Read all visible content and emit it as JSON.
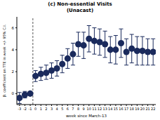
{
  "chart_data": {
    "type": "scatter",
    "title": "(c) Non-essential Visits",
    "subtitle": "(Unacast)",
    "x_label": "week since March-13",
    "y_label": "β: coefficient on TTE in week +/- 95% C.I.",
    "x": [
      -3,
      -2,
      -1,
      0,
      1,
      2,
      3,
      4,
      5,
      6,
      7,
      8,
      9,
      10,
      11,
      12,
      13,
      14,
      15,
      16,
      17,
      18,
      19,
      20,
      21,
      22
    ],
    "values": [
      -0.4,
      -0.1,
      0,
      1.6,
      1.8,
      1.9,
      2.1,
      2.3,
      2.7,
      3.2,
      3.6,
      4.5,
      4.4,
      5.0,
      4.8,
      4.7,
      4.5,
      4.0,
      4.0,
      4.6,
      3.8,
      4.1,
      3.9,
      3.9,
      3.8,
      3.8
    ],
    "ci_low": [
      -0.9,
      -0.4,
      0,
      1.1,
      1.2,
      1.3,
      1.4,
      1.6,
      1.9,
      2.3,
      2.6,
      3.4,
      3.2,
      3.8,
      3.6,
      3.5,
      3.3,
      2.8,
      2.7,
      3.3,
      2.6,
      2.8,
      2.6,
      2.6,
      2.6,
      2.6
    ],
    "ci_high": [
      0.1,
      0.2,
      0,
      2.1,
      2.4,
      2.6,
      2.8,
      3.0,
      3.5,
      4.1,
      4.6,
      5.6,
      5.6,
      6.2,
      6.0,
      5.9,
      5.7,
      5.2,
      5.3,
      5.9,
      5.0,
      5.4,
      5.2,
      5.2,
      5.0,
      5.0
    ],
    "vline": -0.5,
    "xlim": [
      -3.5,
      22.5
    ],
    "xticks": [
      -3,
      -2,
      -1,
      0,
      1,
      2,
      3,
      4,
      5,
      6,
      7,
      8,
      9,
      10,
      11,
      12,
      13,
      14,
      15,
      16,
      17,
      18,
      19,
      20,
      21,
      22
    ],
    "ylim": [
      -1,
      7
    ],
    "yticks": [
      0,
      2,
      4,
      6
    ],
    "color": "#1a2a5c",
    "marker": "circle",
    "grid": false
  }
}
